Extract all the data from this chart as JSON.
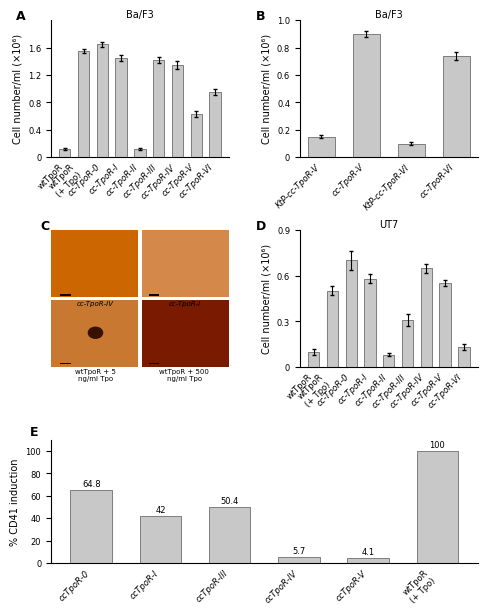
{
  "panel_A": {
    "title": "Ba/F3",
    "ylabel": "Cell number/ml (×10⁶)",
    "ylim": [
      0,
      2.0
    ],
    "yticks": [
      0,
      0.4,
      0.8,
      1.2,
      1.6
    ],
    "categories": [
      "wtTpoR",
      "wtTpoR\n(+ Tpo)",
      "cc-TpoR-0",
      "cc-TpoR-I",
      "cc-TpoR-II",
      "cc-TpoR-III",
      "cc-TpoR-IV",
      "cc-TpoR-V",
      "cc-TpoR-VI"
    ],
    "values": [
      0.12,
      1.55,
      1.65,
      1.45,
      0.12,
      1.42,
      1.35,
      0.63,
      0.95
    ],
    "errors": [
      0.02,
      0.03,
      0.04,
      0.04,
      0.02,
      0.04,
      0.06,
      0.04,
      0.04
    ],
    "bar_color": "#c8c8c8",
    "edge_color": "#555555"
  },
  "panel_B": {
    "title": "Ba/F3",
    "ylabel": "Cell number/ml (×10⁶)",
    "ylim": [
      0,
      1.0
    ],
    "yticks": [
      0,
      0.2,
      0.4,
      0.6,
      0.8,
      1.0
    ],
    "categories": [
      "KtP-cc-TpoR-V",
      "cc-TpoR-V",
      "KtP-cc-TpoR-VI",
      "cc-TpoR-VI"
    ],
    "values": [
      0.15,
      0.9,
      0.1,
      0.74
    ],
    "errors": [
      0.01,
      0.02,
      0.01,
      0.03
    ],
    "bar_color": "#c8c8c8",
    "edge_color": "#555555"
  },
  "panel_D": {
    "title": "UT7",
    "ylabel": "Cell number/ml (×10⁶)",
    "ylim": [
      0,
      0.9
    ],
    "yticks": [
      0,
      0.3,
      0.6,
      0.9
    ],
    "categories": [
      "wtTpoR",
      "wtTpoR\n(+ Tpo)",
      "cc-TpoR-0",
      "cc-TpoR-I",
      "cc-TpoR-II",
      "cc-TpoR-III",
      "cc-TpoR-IV",
      "cc-TpoR-V",
      "cc-TpoR-VI"
    ],
    "values": [
      0.1,
      0.5,
      0.7,
      0.58,
      0.08,
      0.31,
      0.65,
      0.55,
      0.13
    ],
    "errors": [
      0.02,
      0.03,
      0.06,
      0.03,
      0.01,
      0.04,
      0.03,
      0.02,
      0.02
    ],
    "bar_color": "#c8c8c8",
    "edge_color": "#555555"
  },
  "panel_E": {
    "ylabel": "% CD41 induction",
    "ylim": [
      0,
      110
    ],
    "yticks": [
      0,
      20,
      40,
      60,
      80,
      100
    ],
    "categories": [
      "ccTpoR-0",
      "ccTpoR-I",
      "ccTpoR-III",
      "ccTpoR-IV",
      "ccTpoR-V",
      "wtTpoR\n(+ Tpo)"
    ],
    "values": [
      64.8,
      42.0,
      50.4,
      5.7,
      4.1,
      100.0
    ],
    "labels": [
      "64.8",
      "42",
      "50.4",
      "5.7",
      "4.1",
      "100"
    ],
    "bar_color": "#c8c8c8",
    "edge_color": "#555555"
  },
  "panel_C": {
    "topleft_label": "cc-TpoR-IV",
    "topright_label": "cc-TpoR-I",
    "bottomleft_label": "wtTpoR + 5\nng/ml Tpo",
    "bottomright_label": "wtTpoR + 500\nng/ml Tpo",
    "topleft_color": "#cc6600",
    "topright_color": "#d4894a",
    "bottomleft_color": "#c87830",
    "bottomright_color": "#7a1a00"
  },
  "bg_color": "#ffffff",
  "label_fontsize": 7,
  "tick_fontsize": 6,
  "title_fontsize": 7,
  "panel_label_fontsize": 9
}
